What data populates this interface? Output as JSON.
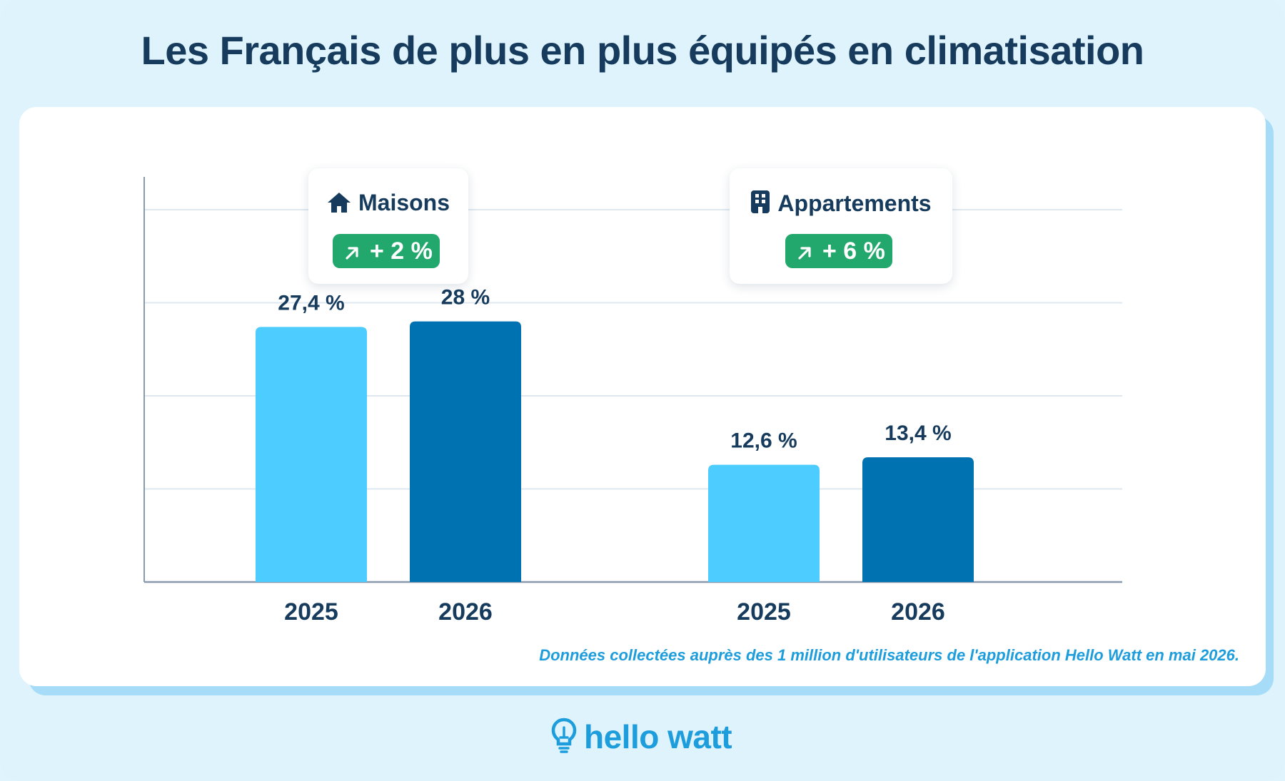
{
  "title": "Les Français de plus en plus équipés en climatisation",
  "source_note": "Données collectées auprès des 1 million d'utilisateurs de l'application Hello Watt en mai 2026.",
  "logo": {
    "text": "hello watt",
    "icon": "lightbulb-icon"
  },
  "colors": {
    "year_2025": "#4dccff",
    "year_2026": "#0071b1",
    "badge": "#22a86c",
    "title": "#163b5c",
    "brand": "#1e9ddc"
  },
  "chart_data": {
    "type": "bar",
    "title": "Les Français de plus en plus équipés en climatisation",
    "grid": true,
    "ylim": [
      0,
      40
    ],
    "groups": [
      {
        "name": "Maisons",
        "icon": "house-icon",
        "change_label": "+ 2 %",
        "change_icon": "arrow-up-right-icon",
        "bars": [
          {
            "x": "2025",
            "value": 27.4,
            "label": "27,4 %"
          },
          {
            "x": "2026",
            "value": 28,
            "label": "28 %"
          }
        ]
      },
      {
        "name": "Appartements",
        "icon": "building-icon",
        "change_label": "+ 6 %",
        "change_icon": "arrow-up-right-icon",
        "bars": [
          {
            "x": "2025",
            "value": 12.6,
            "label": "12,6 %"
          },
          {
            "x": "2026",
            "value": 13.4,
            "label": "13,4 %"
          }
        ]
      }
    ]
  }
}
